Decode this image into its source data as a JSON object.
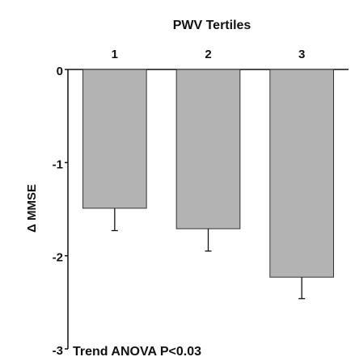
{
  "chart_data": {
    "type": "bar",
    "title": "PWV Tertiles",
    "y_label": "Δ MMSE",
    "annotation": "Trend ANOVA P<0.03",
    "categories": [
      "1",
      "2",
      "3"
    ],
    "values": [
      -1.49,
      -1.71,
      -2.23
    ],
    "errors": [
      0.24,
      0.24,
      0.23
    ],
    "color": "#b3b3b3",
    "ylim": [
      -3,
      0
    ],
    "yticks": [
      0,
      -1,
      -2,
      -3
    ]
  }
}
